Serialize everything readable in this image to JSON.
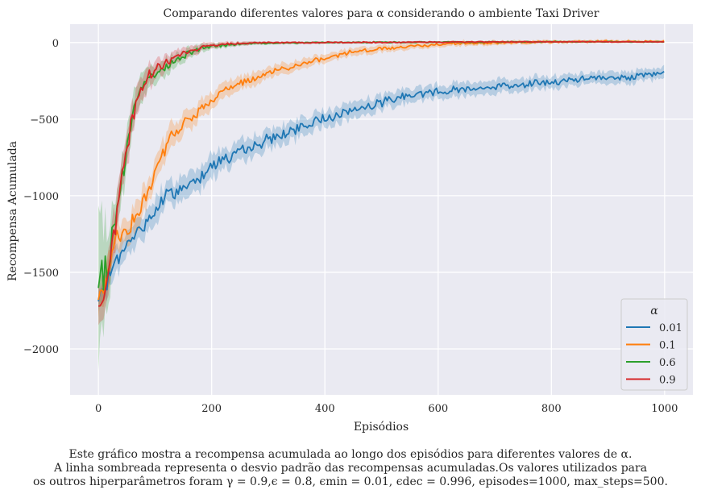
{
  "chart_data": {
    "type": "line",
    "title": "Comparando diferentes valores para α considerando o ambiente Taxi Driver",
    "xlabel": "Episódios",
    "ylabel": "Recompensa Acumulada",
    "xlim": [
      -50,
      1050
    ],
    "ylim": [
      -2300,
      120
    ],
    "xticks": [
      0,
      200,
      400,
      600,
      800,
      1000
    ],
    "yticks": [
      0,
      -500,
      -1000,
      -1500,
      -2000
    ],
    "grid": true,
    "legend": {
      "title": "α",
      "placement": "lower-right"
    },
    "series": [
      {
        "name": "0.01",
        "color": "#1f77b4",
        "points": [
          [
            0,
            -1690
          ],
          [
            10,
            -1630
          ],
          [
            20,
            -1500
          ],
          [
            40,
            -1380
          ],
          [
            60,
            -1280
          ],
          [
            80,
            -1190
          ],
          [
            100,
            -1100
          ],
          [
            120,
            -1000
          ],
          [
            150,
            -950
          ],
          [
            180,
            -880
          ],
          [
            200,
            -790
          ],
          [
            250,
            -720
          ],
          [
            300,
            -630
          ],
          [
            350,
            -570
          ],
          [
            400,
            -490
          ],
          [
            450,
            -440
          ],
          [
            500,
            -390
          ],
          [
            550,
            -340
          ],
          [
            600,
            -320
          ],
          [
            650,
            -300
          ],
          [
            700,
            -290
          ],
          [
            750,
            -270
          ],
          [
            800,
            -260
          ],
          [
            850,
            -240
          ],
          [
            900,
            -230
          ],
          [
            950,
            -220
          ],
          [
            1000,
            -200
          ]
        ],
        "band": [
          [
            0,
            90
          ],
          [
            100,
            90
          ],
          [
            200,
            80
          ],
          [
            300,
            70
          ],
          [
            400,
            60
          ],
          [
            600,
            50
          ],
          [
            800,
            45
          ],
          [
            1000,
            40
          ]
        ]
      },
      {
        "name": "0.1",
        "color": "#ff7f0e",
        "points": [
          [
            0,
            -1680
          ],
          [
            10,
            -1600
          ],
          [
            20,
            -1450
          ],
          [
            30,
            -1300
          ],
          [
            50,
            -1230
          ],
          [
            70,
            -1120
          ],
          [
            90,
            -960
          ],
          [
            110,
            -760
          ],
          [
            130,
            -620
          ],
          [
            150,
            -530
          ],
          [
            170,
            -470
          ],
          [
            200,
            -370
          ],
          [
            230,
            -300
          ],
          [
            260,
            -250
          ],
          [
            300,
            -200
          ],
          [
            350,
            -150
          ],
          [
            400,
            -100
          ],
          [
            450,
            -60
          ],
          [
            500,
            -40
          ],
          [
            550,
            -25
          ],
          [
            600,
            -10
          ],
          [
            700,
            0
          ],
          [
            800,
            5
          ],
          [
            900,
            8
          ],
          [
            1000,
            8
          ]
        ],
        "band": [
          [
            0,
            120
          ],
          [
            100,
            90
          ],
          [
            200,
            60
          ],
          [
            300,
            40
          ],
          [
            400,
            30
          ],
          [
            600,
            20
          ],
          [
            800,
            12
          ],
          [
            1000,
            10
          ]
        ]
      },
      {
        "name": "0.6",
        "color": "#2ca02c",
        "points": [
          [
            0,
            -1600
          ],
          [
            10,
            -1500
          ],
          [
            20,
            -1330
          ],
          [
            30,
            -1150
          ],
          [
            40,
            -930
          ],
          [
            50,
            -720
          ],
          [
            60,
            -500
          ],
          [
            70,
            -350
          ],
          [
            80,
            -280
          ],
          [
            90,
            -230
          ],
          [
            100,
            -200
          ],
          [
            120,
            -160
          ],
          [
            140,
            -110
          ],
          [
            160,
            -70
          ],
          [
            180,
            -40
          ],
          [
            200,
            -25
          ],
          [
            250,
            -10
          ],
          [
            300,
            -5
          ],
          [
            400,
            0
          ],
          [
            600,
            3
          ],
          [
            800,
            5
          ],
          [
            1000,
            5
          ]
        ],
        "band": [
          [
            0,
            500
          ],
          [
            30,
            150
          ],
          [
            60,
            120
          ],
          [
            100,
            70
          ],
          [
            150,
            40
          ],
          [
            200,
            20
          ],
          [
            300,
            8
          ],
          [
            1000,
            5
          ]
        ]
      },
      {
        "name": "0.9",
        "color": "#d62728",
        "points": [
          [
            0,
            -1720
          ],
          [
            10,
            -1620
          ],
          [
            20,
            -1430
          ],
          [
            30,
            -1180
          ],
          [
            40,
            -920
          ],
          [
            50,
            -700
          ],
          [
            60,
            -500
          ],
          [
            70,
            -340
          ],
          [
            80,
            -250
          ],
          [
            90,
            -200
          ],
          [
            100,
            -170
          ],
          [
            120,
            -130
          ],
          [
            140,
            -90
          ],
          [
            160,
            -55
          ],
          [
            180,
            -30
          ],
          [
            200,
            -15
          ],
          [
            250,
            -5
          ],
          [
            300,
            0
          ],
          [
            400,
            0
          ],
          [
            600,
            3
          ],
          [
            800,
            5
          ],
          [
            1000,
            5
          ]
        ],
        "band": [
          [
            0,
            150
          ],
          [
            30,
            140
          ],
          [
            60,
            110
          ],
          [
            100,
            70
          ],
          [
            150,
            40
          ],
          [
            200,
            20
          ],
          [
            300,
            8
          ],
          [
            1000,
            5
          ]
        ]
      }
    ]
  },
  "caption": {
    "line1": "Este gráfico mostra a recompensa acumulada ao longo dos episódios para diferentes valores de α.",
    "line2": "A linha sombreada representa o desvio padrão das recompensas acumuladas.Os valores utilizados para",
    "line3": "os outros hiperparâmetros foram γ = 0.9,ϵ = 0.8, ϵmin = 0.01, ϵdec = 0.996, episodes=1000, max_steps=500."
  }
}
